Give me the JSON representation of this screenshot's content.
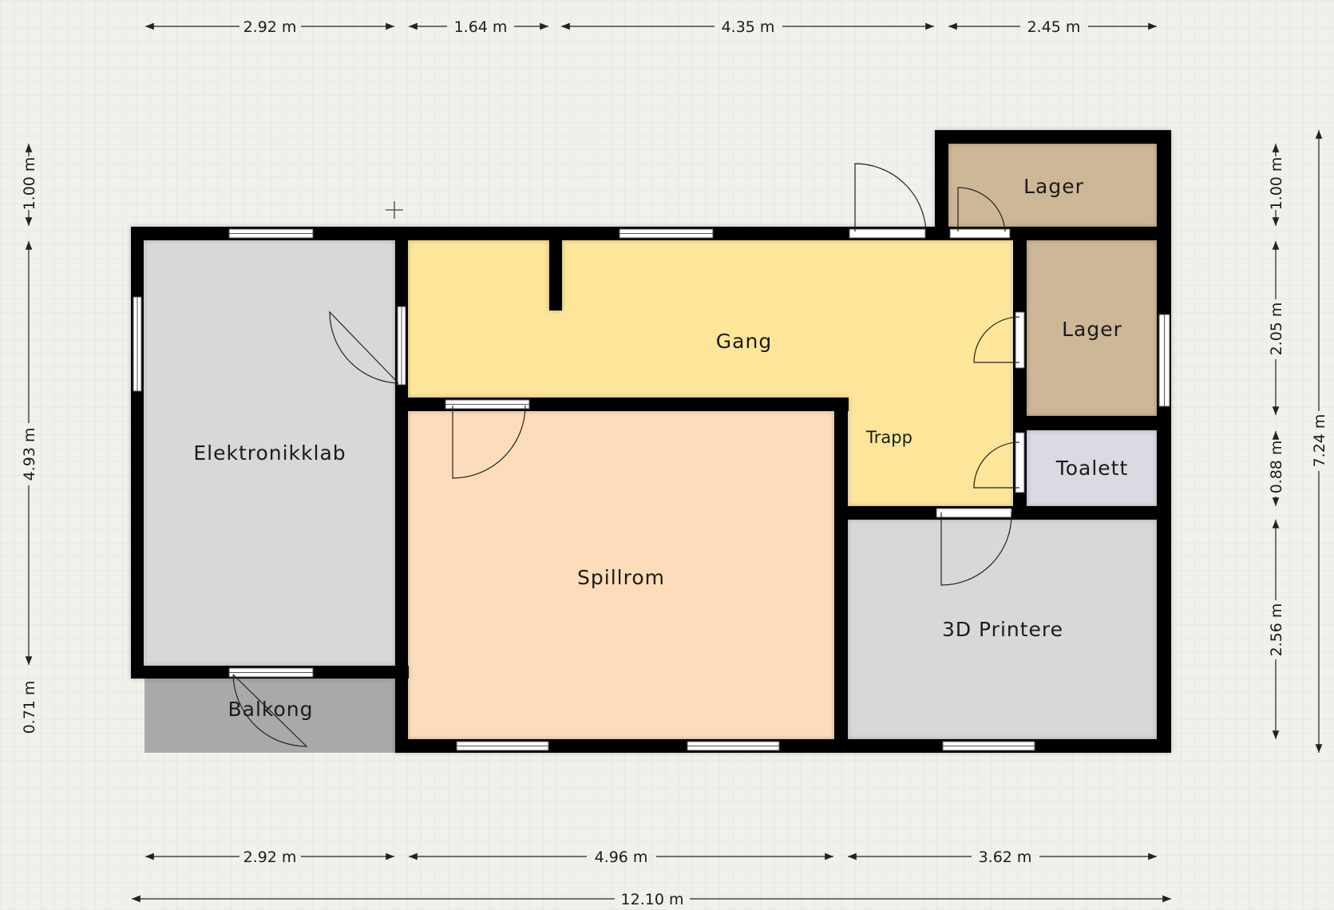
{
  "colors": {
    "background": "#f1f0eb",
    "grid": "#e1e0da",
    "wall": "#000000",
    "gang": "#fde699",
    "spillrom": "#fcdcba",
    "grey_room": "#d8d8d8",
    "lager": "#cdb797",
    "toalett": "#dadae3",
    "balkong": "#a9a9a9"
  },
  "rooms": {
    "elektronikklab": "Elektronikklab",
    "gang": "Gang",
    "trapp": "Trapp",
    "spillrom": "Spillrom",
    "printere": "3D Printere",
    "lager_top": "Lager",
    "lager_mid": "Lager",
    "toalett": "Toalett",
    "balkong": "Balkong"
  },
  "dimensions": {
    "top": [
      "2.92 m",
      "1.64 m",
      "4.35 m",
      "2.45 m"
    ],
    "bottom": [
      "2.92 m",
      "4.96 m",
      "3.62 m"
    ],
    "total_width": "12.10 m",
    "left": [
      "1.00 m",
      "4.93 m",
      "0.71 m"
    ],
    "right": [
      "1.00 m",
      "2.05 m",
      "0.88 m",
      "2.56 m"
    ],
    "total_height": "7.24 m"
  },
  "icons": [
    "crosshair-icon"
  ]
}
